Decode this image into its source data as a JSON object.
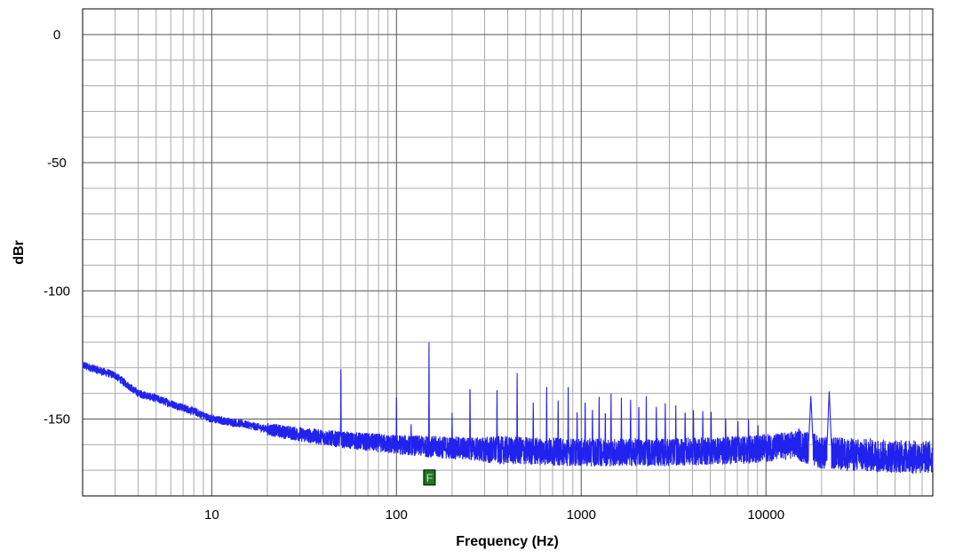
{
  "chart_data": {
    "type": "line",
    "xlabel": "Frequency (Hz)",
    "ylabel": "dBr",
    "x_scale": "log",
    "xlim": [
      2,
      80000
    ],
    "ylim": [
      -180,
      10
    ],
    "grid": true,
    "x_tick_labels": [
      "10",
      "100",
      "1000",
      "10000"
    ],
    "x_ticks": [
      10,
      100,
      1000,
      10000
    ],
    "y_ticks": [
      0,
      -50,
      -100,
      -150
    ],
    "y_tick_labels": [
      "0",
      "-50",
      "-100",
      "-150"
    ],
    "series_color": "#2222ee",
    "marker": {
      "label": "F",
      "x": 150,
      "y": -173,
      "fill": "#1e7a1e"
    },
    "noise_floor": [
      [
        2,
        -129
      ],
      [
        3,
        -133
      ],
      [
        4,
        -140
      ],
      [
        5,
        -142
      ],
      [
        6,
        -144
      ],
      [
        8,
        -147
      ],
      [
        10,
        -150
      ],
      [
        15,
        -152
      ],
      [
        20,
        -154
      ],
      [
        30,
        -156
      ],
      [
        50,
        -158
      ],
      [
        100,
        -160
      ],
      [
        300,
        -162
      ],
      [
        1000,
        -163
      ],
      [
        3000,
        -163
      ],
      [
        8000,
        -162
      ],
      [
        15000,
        -160
      ],
      [
        20000,
        -163
      ],
      [
        30000,
        -164
      ],
      [
        80000,
        -165
      ]
    ],
    "peaks": [
      {
        "x": 50,
        "y": -127
      },
      {
        "x": 100,
        "y": -140
      },
      {
        "x": 120,
        "y": -151
      },
      {
        "x": 150,
        "y": -119
      },
      {
        "x": 200,
        "y": -147
      },
      {
        "x": 250,
        "y": -134
      },
      {
        "x": 350,
        "y": -137
      },
      {
        "x": 450,
        "y": -130
      },
      {
        "x": 550,
        "y": -141
      },
      {
        "x": 650,
        "y": -135
      },
      {
        "x": 750,
        "y": -141
      },
      {
        "x": 850,
        "y": -137
      },
      {
        "x": 950,
        "y": -145
      },
      {
        "x": 1050,
        "y": -140
      },
      {
        "x": 1150,
        "y": -144
      },
      {
        "x": 1250,
        "y": -139
      },
      {
        "x": 1350,
        "y": -145
      },
      {
        "x": 1450,
        "y": -138
      },
      {
        "x": 1650,
        "y": -141
      },
      {
        "x": 1850,
        "y": -140
      },
      {
        "x": 2050,
        "y": -142
      },
      {
        "x": 2250,
        "y": -141
      },
      {
        "x": 2550,
        "y": -143
      },
      {
        "x": 2850,
        "y": -143
      },
      {
        "x": 3250,
        "y": -144
      },
      {
        "x": 3650,
        "y": -145
      },
      {
        "x": 4050,
        "y": -145
      },
      {
        "x": 4550,
        "y": -146
      },
      {
        "x": 5050,
        "y": -147
      },
      {
        "x": 6050,
        "y": -148
      },
      {
        "x": 7050,
        "y": -149
      },
      {
        "x": 8050,
        "y": -150
      },
      {
        "x": 9050,
        "y": -151
      },
      {
        "x": 17500,
        "y": -141
      },
      {
        "x": 22000,
        "y": -139
      }
    ]
  }
}
